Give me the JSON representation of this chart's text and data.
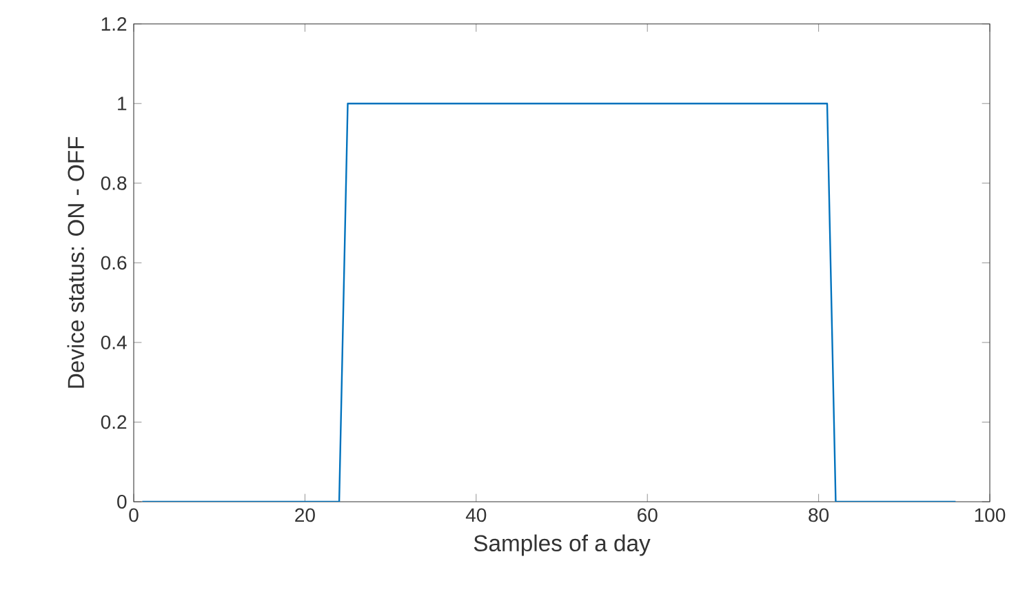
{
  "chart_data": {
    "type": "line",
    "xlabel": "Samples of a day",
    "ylabel": "Device status: ON - OFF",
    "x": [
      1,
      24,
      25,
      81,
      82,
      96
    ],
    "series": [
      {
        "color": "#0072bd",
        "values": [
          0,
          0,
          1,
          1,
          0,
          0
        ]
      }
    ],
    "xlim": [
      0,
      100
    ],
    "ylim": [
      0,
      1.2
    ],
    "xticks": [
      0,
      20,
      40,
      60,
      80,
      100
    ],
    "yticks": [
      0,
      0.2,
      0.4,
      0.6,
      0.8,
      1,
      1.2
    ],
    "grid": false,
    "marker": "none",
    "line_style": "solid"
  }
}
